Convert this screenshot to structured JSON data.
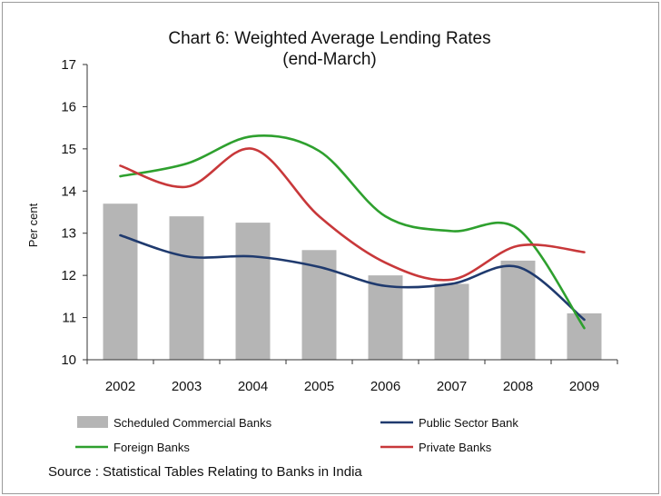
{
  "chart_data": {
    "type": "bar",
    "title": "Chart  6: Weighted Average Lending Rates",
    "subtitle": "(end-March)",
    "ylabel": "Per cent",
    "xlabel": "",
    "ylim": [
      10,
      17
    ],
    "yticks": [
      "10",
      "11",
      "12",
      "13",
      "14",
      "15",
      "16",
      "17"
    ],
    "categories": [
      "2002",
      "2003",
      "2004",
      "2005",
      "2006",
      "2007",
      "2008",
      "2009"
    ],
    "bars": {
      "name": "Scheduled Commercial Banks",
      "color": "#b5b5b5",
      "values": [
        13.7,
        13.4,
        13.25,
        12.6,
        12.0,
        11.8,
        12.35,
        11.1
      ]
    },
    "series": [
      {
        "name": "Public Sector Bank",
        "color": "#1f3a6e",
        "values": [
          12.95,
          12.45,
          12.45,
          12.2,
          11.75,
          11.8,
          12.2,
          10.95
        ]
      },
      {
        "name": "Foreign Banks",
        "color": "#2ea02e",
        "values": [
          14.35,
          14.65,
          15.3,
          14.95,
          13.4,
          13.05,
          13.1,
          10.75
        ]
      },
      {
        "name": "Private Banks",
        "color": "#c8383a",
        "values": [
          14.6,
          14.1,
          15.0,
          13.4,
          12.3,
          11.9,
          12.7,
          12.55
        ]
      }
    ],
    "legend_position": "bottom",
    "grid": false
  },
  "source": "Source : Statistical Tables Relating to Banks in India"
}
